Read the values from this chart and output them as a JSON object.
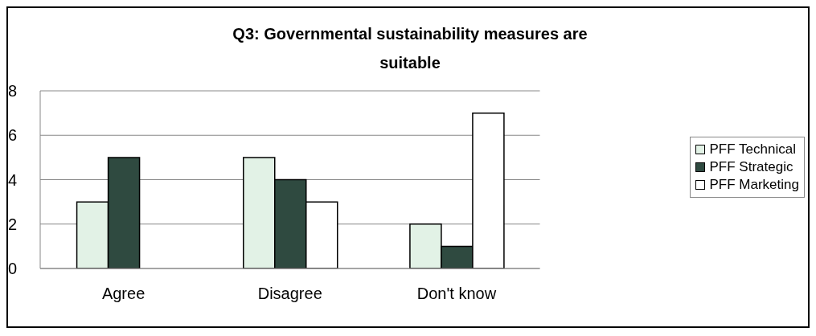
{
  "chart_data": {
    "type": "bar",
    "title": "Q3: Governmental sustainability measures are suitable",
    "categories": [
      "Agree",
      "Disagree",
      "Don't know"
    ],
    "series": [
      {
        "name": "PFF Technical",
        "color": "#e2f2e6",
        "values": [
          3,
          5,
          2
        ]
      },
      {
        "name": "PFF Strategic",
        "color": "#2f4a40",
        "values": [
          5,
          4,
          1
        ]
      },
      {
        "name": "PFF Marketing",
        "color": "#ffffff",
        "values": [
          0,
          3,
          7
        ]
      }
    ],
    "ylim": [
      0,
      8
    ],
    "yticks": [
      0,
      2,
      4,
      6,
      8
    ],
    "grid": "y",
    "legend": "right"
  }
}
